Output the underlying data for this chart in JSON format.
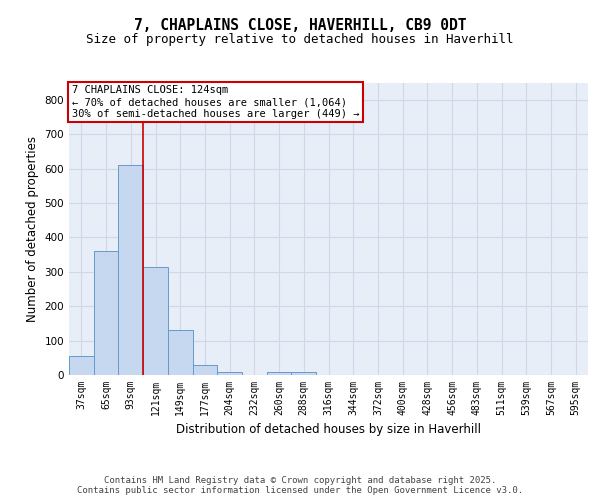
{
  "title_line1": "7, CHAPLAINS CLOSE, HAVERHILL, CB9 0DT",
  "title_line2": "Size of property relative to detached houses in Haverhill",
  "xlabel": "Distribution of detached houses by size in Haverhill",
  "ylabel": "Number of detached properties",
  "categories": [
    "37sqm",
    "65sqm",
    "93sqm",
    "121sqm",
    "149sqm",
    "177sqm",
    "204sqm",
    "232sqm",
    "260sqm",
    "288sqm",
    "316sqm",
    "344sqm",
    "372sqm",
    "400sqm",
    "428sqm",
    "456sqm",
    "483sqm",
    "511sqm",
    "539sqm",
    "567sqm",
    "595sqm"
  ],
  "values": [
    55,
    360,
    610,
    315,
    130,
    30,
    8,
    0,
    8,
    8,
    0,
    0,
    0,
    0,
    0,
    0,
    0,
    0,
    0,
    0,
    0
  ],
  "bar_color": "#c5d8f0",
  "bar_edge_color": "#6699cc",
  "vline_color": "#cc0000",
  "annotation_text": "7 CHAPLAINS CLOSE: 124sqm\n← 70% of detached houses are smaller (1,064)\n30% of semi-detached houses are larger (449) →",
  "annotation_box_color": "#cc0000",
  "ylim": [
    0,
    850
  ],
  "yticks": [
    0,
    100,
    200,
    300,
    400,
    500,
    600,
    700,
    800
  ],
  "background_color": "#e8eef8",
  "grid_color": "#d0d8e8",
  "footer_text": "Contains HM Land Registry data © Crown copyright and database right 2025.\nContains public sector information licensed under the Open Government Licence v3.0."
}
